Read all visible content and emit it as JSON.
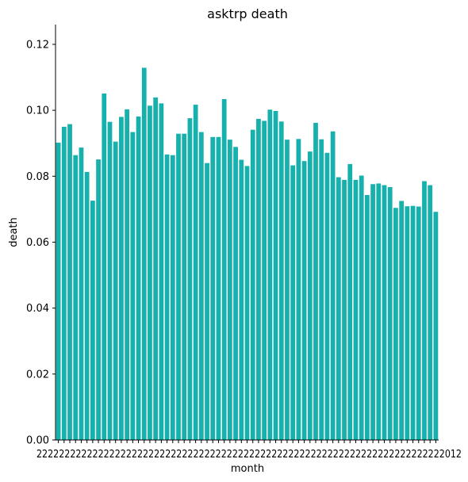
{
  "chart_data": {
    "type": "bar",
    "title": "asktrp death",
    "xlabel": "month",
    "ylabel": "death",
    "ylim": [
      0,
      0.126
    ],
    "yticks": [
      "0.00",
      "0.02",
      "0.04",
      "0.06",
      "0.08",
      "0.10",
      "0.12"
    ],
    "ytick_values": [
      0,
      0.02,
      0.04,
      0.06,
      0.08,
      0.1,
      0.12
    ],
    "grid": false,
    "bar_color": "#17b1ad",
    "xtick_labels_overlapping": "2222222222222222222222222222222222222222222222222222222222222222222222222012",
    "values": [
      0.0902,
      0.095,
      0.0958,
      0.0864,
      0.0887,
      0.0813,
      0.0726,
      0.0851,
      0.1051,
      0.0965,
      0.0905,
      0.098,
      0.1003,
      0.0934,
      0.0981,
      0.1129,
      0.1014,
      0.1039,
      0.1021,
      0.0866,
      0.0864,
      0.0929,
      0.0929,
      0.0976,
      0.1017,
      0.0934,
      0.084,
      0.0919,
      0.0919,
      0.1034,
      0.0911,
      0.0889,
      0.085,
      0.0831,
      0.0941,
      0.0974,
      0.0968,
      0.1002,
      0.0998,
      0.0966,
      0.0911,
      0.0833,
      0.0913,
      0.0846,
      0.0875,
      0.0962,
      0.0912,
      0.0871,
      0.0936,
      0.0797,
      0.0789,
      0.0837,
      0.0789,
      0.0802,
      0.0743,
      0.0776,
      0.0778,
      0.0773,
      0.0767,
      0.0704,
      0.0725,
      0.0709,
      0.071,
      0.0708,
      0.0785,
      0.0773,
      0.0692
    ]
  }
}
